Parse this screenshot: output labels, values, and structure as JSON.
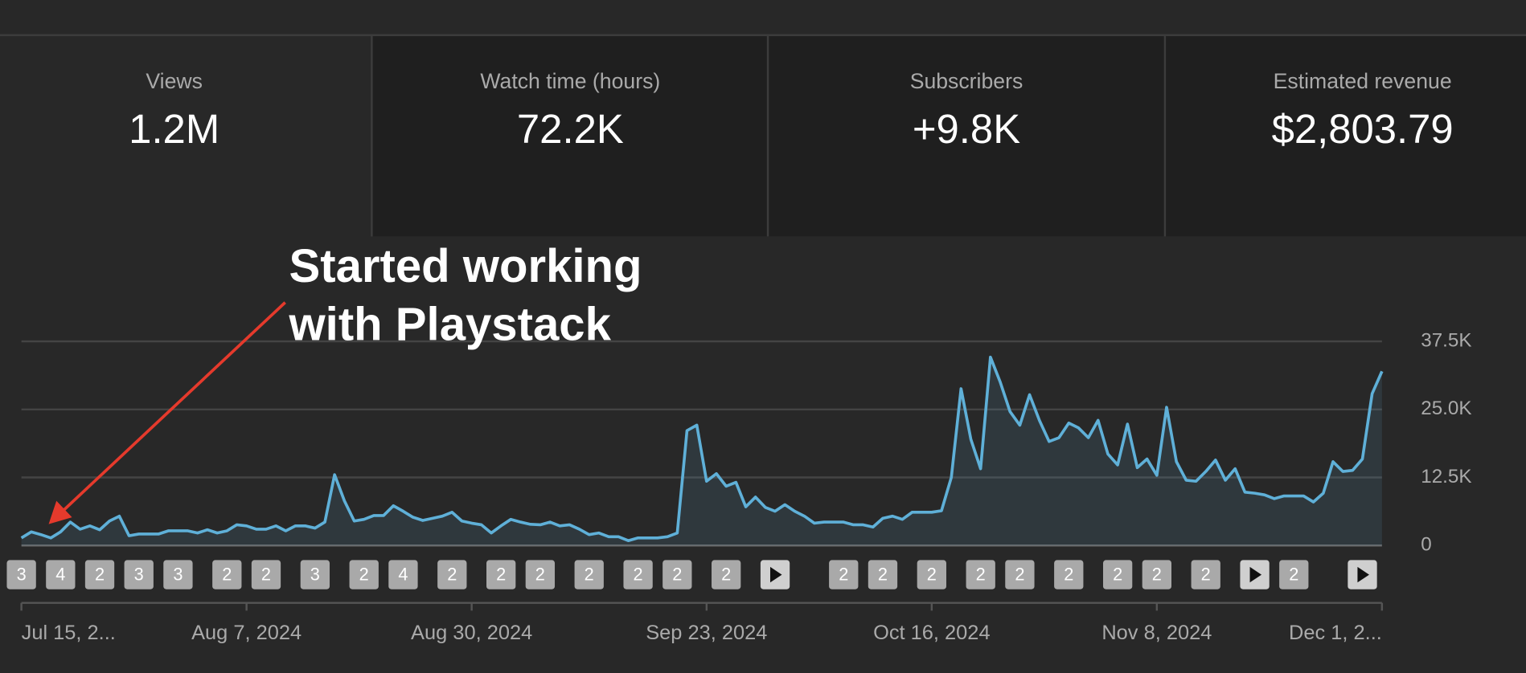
{
  "cards": [
    {
      "label": "Views",
      "value": "1.2M"
    },
    {
      "label": "Watch time (hours)",
      "value": "72.2K"
    },
    {
      "label": "Subscribers",
      "value": "+9.8K"
    },
    {
      "label": "Estimated revenue",
      "value": "$2,803.79"
    }
  ],
  "annotation": [
    "Started working",
    "with Playstack"
  ],
  "chart_data": {
    "type": "line",
    "categories": [
      "Jul 15, 2...",
      null,
      null,
      null,
      null,
      null,
      null,
      null,
      null,
      null,
      null,
      null,
      null,
      null,
      null,
      null,
      null,
      null,
      null,
      null,
      null,
      null,
      null,
      "Aug 7, 2024",
      null,
      null,
      null,
      null,
      null,
      null,
      null,
      null,
      null,
      null,
      null,
      null,
      null,
      null,
      null,
      null,
      null,
      null,
      null,
      null,
      null,
      null,
      "Aug 30, 2024",
      null,
      null,
      null,
      null,
      null,
      null,
      null,
      null,
      null,
      null,
      null,
      null,
      null,
      null,
      null,
      null,
      null,
      null,
      null,
      null,
      null,
      null,
      null,
      "Sep 23, 2024",
      null,
      null,
      null,
      null,
      null,
      null,
      null,
      null,
      null,
      null,
      null,
      null,
      null,
      null,
      null,
      null,
      null,
      null,
      null,
      null,
      null,
      null,
      "Oct 16, 2024",
      null,
      null,
      null,
      null,
      null,
      null,
      null,
      null,
      null,
      null,
      null,
      null,
      null,
      null,
      null,
      null,
      null,
      null,
      null,
      null,
      null,
      null,
      "Nov 8, 2024",
      null,
      null,
      null,
      null,
      null,
      null,
      null,
      null,
      null,
      null,
      null,
      null,
      null,
      null,
      null,
      null,
      null,
      null,
      null,
      null,
      null,
      null,
      "Dec 1, 2..."
    ],
    "values": [
      1.4,
      2.5,
      2.0,
      1.4,
      2.5,
      4.3,
      3.0,
      3.6,
      2.9,
      4.5,
      5.4,
      1.8,
      2.1,
      2.1,
      2.1,
      2.7,
      2.7,
      2.7,
      2.3,
      2.9,
      2.3,
      2.7,
      3.8,
      3.6,
      3.0,
      3.0,
      3.6,
      2.7,
      3.6,
      3.6,
      3.2,
      4.3,
      13.0,
      8.2,
      4.5,
      4.8,
      5.5,
      5.5,
      7.3,
      6.3,
      5.2,
      4.6,
      5.0,
      5.4,
      6.1,
      4.5,
      4.1,
      3.8,
      2.3,
      3.6,
      4.8,
      4.3,
      3.9,
      3.8,
      4.3,
      3.6,
      3.8,
      3.0,
      2.0,
      2.3,
      1.6,
      1.6,
      0.9,
      1.4,
      1.4,
      1.4,
      1.6,
      2.3,
      21.1,
      22.1,
      11.8,
      13.2,
      10.9,
      11.6,
      7.1,
      8.9,
      7.0,
      6.3,
      7.5,
      6.3,
      5.4,
      4.1,
      4.3,
      4.3,
      4.3,
      3.8,
      3.8,
      3.4,
      5.0,
      5.4,
      4.8,
      6.1,
      6.1,
      6.1,
      6.4,
      12.5,
      28.8,
      19.5,
      14.1,
      34.6,
      30.0,
      24.6,
      22.1,
      27.7,
      23.0,
      19.1,
      19.8,
      22.5,
      21.6,
      19.8,
      23.0,
      16.8,
      14.8,
      22.3,
      14.3,
      15.9,
      12.9,
      25.4,
      15.4,
      12.0,
      11.8,
      13.6,
      15.7,
      12.0,
      14.1,
      9.8,
      9.6,
      9.3,
      8.6,
      9.1,
      9.1,
      9.1,
      8.0,
      9.6,
      15.4,
      13.6,
      13.8,
      15.9,
      27.9,
      32.0
    ],
    "color": "#5fb0d8",
    "ylim": [
      0,
      37.5
    ],
    "yticks": [
      0,
      {
        "value": 12.5,
        "label": "12.5K"
      },
      {
        "value": 25,
        "label": "25.0K"
      },
      {
        "value": 37.5,
        "label": "37.5K"
      }
    ],
    "grid": true,
    "video_markers": [
      "3",
      "4",
      "2",
      "3",
      "3",
      "2",
      "2",
      "3",
      "2",
      "4",
      "2",
      "2",
      "2",
      "2",
      "2",
      "2",
      "2",
      null,
      "2",
      "2",
      "2",
      "2",
      "2",
      "2",
      "2",
      "2",
      "2",
      null,
      "2",
      null
    ]
  }
}
